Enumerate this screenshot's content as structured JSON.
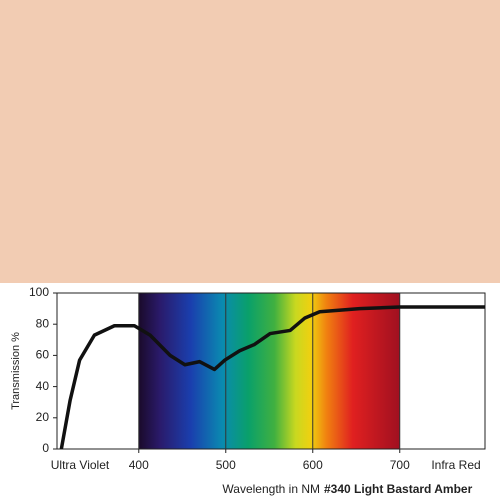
{
  "swatch_color": "#f2ccb3",
  "chart_data": {
    "type": "line",
    "title": "#340 Light Bastard Amber",
    "x_label": "Wavelength in NM",
    "y_label": "Transmission %",
    "annotations": [
      "Ultra Violet",
      "Infra Red"
    ],
    "x": [
      311,
      321,
      332,
      349,
      372,
      395,
      413,
      436,
      453,
      470,
      487,
      499,
      516,
      533,
      551,
      574,
      591,
      608,
      654,
      700,
      798
    ],
    "values": [
      0,
      31,
      57,
      73,
      79,
      79,
      73,
      60,
      54,
      56,
      51,
      57,
      63,
      67,
      74,
      76,
      84,
      88,
      90,
      91,
      91
    ],
    "color": "#111111",
    "xlim": [
      306,
      798
    ],
    "ylim": [
      0,
      100
    ],
    "xticks": [
      400,
      500,
      600,
      700
    ],
    "yticks": [
      0,
      20,
      40,
      60,
      80,
      100
    ],
    "grid": "x"
  }
}
